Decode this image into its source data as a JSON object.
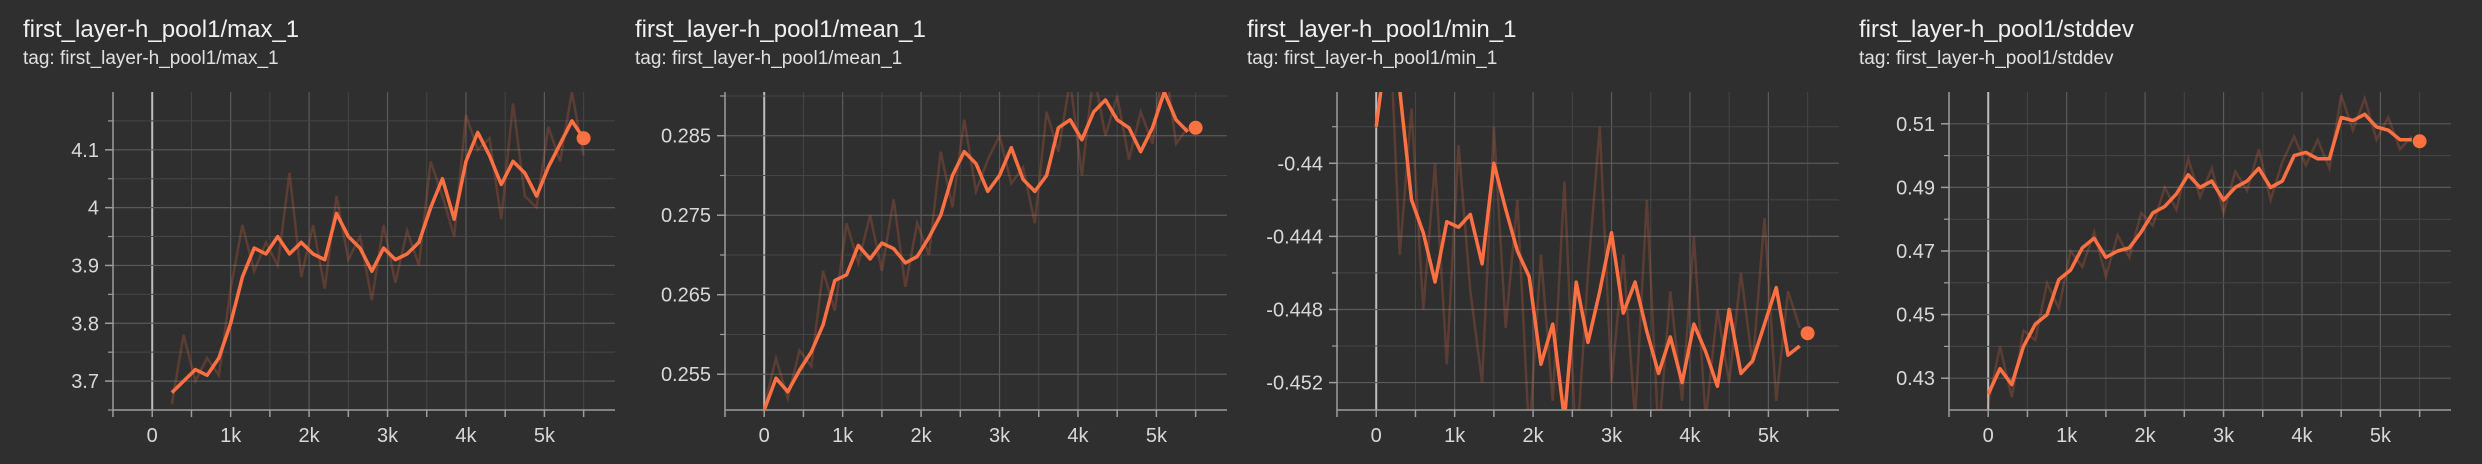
{
  "chart_data": [
    {
      "type": "line",
      "title": "first_layer-h_pool1/max_1",
      "tag": "tag: first_layer-h_pool1/max_1",
      "xlim": [
        -500,
        5900
      ],
      "ylim": [
        3.65,
        4.2
      ],
      "x_ticks": [
        0,
        1000,
        2000,
        3000,
        4000,
        5000
      ],
      "x_tick_labels": [
        "0",
        "1k",
        "2k",
        "3k",
        "4k",
        "5k"
      ],
      "y_ticks": [
        3.7,
        3.8,
        3.9,
        4.0,
        4.1
      ],
      "y_tick_labels": [
        "3.7",
        "3.8",
        "3.9",
        "4",
        "4.1"
      ],
      "series": [
        {
          "x": [
            250,
            400,
            550,
            700,
            850,
            1000,
            1150,
            1300,
            1450,
            1600,
            1750,
            1900,
            2050,
            2200,
            2350,
            2500,
            2650,
            2800,
            2950,
            3100,
            3250,
            3400,
            3550,
            3700,
            3850,
            4000,
            4150,
            4300,
            4450,
            4600,
            4750,
            4900,
            5050,
            5200,
            5350,
            5500
          ],
          "y": [
            3.68,
            3.7,
            3.72,
            3.71,
            3.74,
            3.8,
            3.88,
            3.93,
            3.92,
            3.95,
            3.92,
            3.94,
            3.92,
            3.91,
            3.99,
            3.95,
            3.93,
            3.89,
            3.93,
            3.91,
            3.92,
            3.94,
            4.0,
            4.05,
            3.98,
            4.08,
            4.13,
            4.09,
            4.04,
            4.08,
            4.06,
            4.02,
            4.07,
            4.11,
            4.15,
            4.12
          ],
          "raw_y": [
            3.66,
            3.78,
            3.7,
            3.74,
            3.71,
            3.86,
            3.97,
            3.89,
            3.94,
            3.9,
            4.06,
            3.88,
            3.97,
            3.86,
            4.02,
            3.91,
            3.95,
            3.84,
            3.97,
            3.87,
            3.96,
            3.9,
            4.08,
            4.02,
            3.95,
            4.16,
            4.1,
            4.12,
            3.98,
            4.18,
            4.02,
            4.0,
            4.14,
            4.08,
            4.2,
            4.09
          ]
        }
      ],
      "last_point": {
        "x": 5500,
        "y": 4.12
      },
      "color": "#ff7043"
    },
    {
      "type": "line",
      "title": "first_layer-h_pool1/mean_1",
      "tag": "tag: first_layer-h_pool1/mean_1",
      "xlim": [
        -500,
        5900
      ],
      "ylim": [
        0.2505,
        0.2905
      ],
      "x_ticks": [
        0,
        1000,
        2000,
        3000,
        4000,
        5000
      ],
      "x_tick_labels": [
        "0",
        "1k",
        "2k",
        "3k",
        "4k",
        "5k"
      ],
      "y_ticks": [
        0.255,
        0.265,
        0.275,
        0.285
      ],
      "y_tick_labels": [
        "0.255",
        "0.265",
        "0.275",
        "0.285"
      ],
      "series": [
        {
          "x": [
            0,
            150,
            300,
            450,
            600,
            750,
            900,
            1050,
            1200,
            1350,
            1500,
            1650,
            1800,
            1950,
            2100,
            2250,
            2400,
            2550,
            2700,
            2850,
            3000,
            3150,
            3300,
            3450,
            3600,
            3750,
            3900,
            4050,
            4200,
            4350,
            4500,
            4650,
            4800,
            4950,
            5100,
            5250,
            5400
          ],
          "y": [
            0.2505,
            0.2545,
            0.2528,
            0.2555,
            0.2578,
            0.2612,
            0.2668,
            0.2675,
            0.2712,
            0.2695,
            0.2715,
            0.2708,
            0.269,
            0.2698,
            0.2722,
            0.275,
            0.28,
            0.283,
            0.2815,
            0.278,
            0.28,
            0.2835,
            0.2795,
            0.278,
            0.28,
            0.286,
            0.287,
            0.2845,
            0.288,
            0.2895,
            0.287,
            0.286,
            0.283,
            0.286,
            0.2905,
            0.287,
            0.2855
          ],
          "raw_y": [
            0.251,
            0.257,
            0.252,
            0.258,
            0.256,
            0.268,
            0.263,
            0.274,
            0.269,
            0.275,
            0.268,
            0.277,
            0.266,
            0.274,
            0.27,
            0.283,
            0.276,
            0.287,
            0.278,
            0.282,
            0.285,
            0.279,
            0.281,
            0.274,
            0.288,
            0.283,
            0.292,
            0.28,
            0.293,
            0.285,
            0.29,
            0.282,
            0.288,
            0.284,
            0.295,
            0.284,
            0.286
          ]
        }
      ],
      "last_point": {
        "x": 5500,
        "y": 0.286
      },
      "color": "#ff7043"
    },
    {
      "type": "line",
      "title": "first_layer-h_pool1/min_1",
      "tag": "tag: first_layer-h_pool1/min_1",
      "xlim": [
        -500,
        5900
      ],
      "ylim": [
        -0.4535,
        -0.4361
      ],
      "x_ticks": [
        0,
        1000,
        2000,
        3000,
        4000,
        5000
      ],
      "x_tick_labels": [
        "0",
        "1k",
        "2k",
        "3k",
        "4k",
        "5k"
      ],
      "y_ticks": [
        -0.452,
        -0.448,
        -0.444,
        -0.44
      ],
      "y_tick_labels": [
        "-0.452",
        "-0.448",
        "-0.444",
        "-0.44"
      ],
      "series": [
        {
          "x": [
            0,
            150,
            300,
            450,
            600,
            750,
            900,
            1050,
            1200,
            1350,
            1500,
            1650,
            1800,
            1950,
            2100,
            2250,
            2400,
            2550,
            2700,
            2850,
            3000,
            3150,
            3300,
            3450,
            3600,
            3750,
            3900,
            4050,
            4200,
            4350,
            4500,
            4650,
            4800,
            4950,
            5100,
            5250,
            5400
          ],
          "y": [
            -0.438,
            -0.433,
            -0.436,
            -0.442,
            -0.4438,
            -0.4465,
            -0.4432,
            -0.4435,
            -0.4428,
            -0.4455,
            -0.44,
            -0.4425,
            -0.4448,
            -0.4462,
            -0.451,
            -0.4488,
            -0.454,
            -0.4465,
            -0.4498,
            -0.447,
            -0.4438,
            -0.4482,
            -0.4465,
            -0.4492,
            -0.4515,
            -0.4495,
            -0.452,
            -0.4488,
            -0.4503,
            -0.4522,
            -0.448,
            -0.4515,
            -0.4508,
            -0.4488,
            -0.4468,
            -0.4505,
            -0.45
          ],
          "raw_y": [
            -0.435,
            -0.43,
            -0.445,
            -0.437,
            -0.448,
            -0.44,
            -0.451,
            -0.439,
            -0.447,
            -0.452,
            -0.438,
            -0.449,
            -0.442,
            -0.455,
            -0.445,
            -0.453,
            -0.441,
            -0.456,
            -0.446,
            -0.438,
            -0.452,
            -0.445,
            -0.454,
            -0.442,
            -0.455,
            -0.447,
            -0.453,
            -0.444,
            -0.454,
            -0.448,
            -0.452,
            -0.446,
            -0.451,
            -0.443,
            -0.453,
            -0.447,
            -0.449
          ]
        }
      ],
      "last_point": {
        "x": 5500,
        "y": -0.4493
      },
      "color": "#ff7043"
    },
    {
      "type": "line",
      "title": "first_layer-h_pool1/stddev",
      "tag": "tag: first_layer-h_pool1/stddev",
      "xlim": [
        -500,
        5900
      ],
      "ylim": [
        0.42,
        0.52
      ],
      "x_ticks": [
        0,
        1000,
        2000,
        3000,
        4000,
        5000
      ],
      "x_tick_labels": [
        "0",
        "1k",
        "2k",
        "3k",
        "4k",
        "5k"
      ],
      "y_ticks": [
        0.43,
        0.45,
        0.47,
        0.49,
        0.51
      ],
      "y_tick_labels": [
        "0.43",
        "0.45",
        "0.47",
        "0.49",
        "0.51"
      ],
      "series": [
        {
          "x": [
            0,
            150,
            300,
            450,
            600,
            750,
            900,
            1050,
            1200,
            1350,
            1500,
            1650,
            1800,
            1950,
            2100,
            2250,
            2400,
            2550,
            2700,
            2850,
            3000,
            3150,
            3300,
            3450,
            3600,
            3750,
            3900,
            4050,
            4200,
            4350,
            4500,
            4650,
            4800,
            4950,
            5100,
            5250,
            5400
          ],
          "y": [
            0.425,
            0.433,
            0.428,
            0.44,
            0.447,
            0.45,
            0.461,
            0.464,
            0.471,
            0.474,
            0.468,
            0.47,
            0.471,
            0.476,
            0.482,
            0.484,
            0.488,
            0.494,
            0.49,
            0.492,
            0.486,
            0.49,
            0.492,
            0.496,
            0.49,
            0.492,
            0.5,
            0.501,
            0.499,
            0.499,
            0.512,
            0.511,
            0.513,
            0.509,
            0.508,
            0.505,
            0.505
          ],
          "raw_y": [
            0.422,
            0.44,
            0.424,
            0.445,
            0.442,
            0.46,
            0.452,
            0.47,
            0.465,
            0.476,
            0.462,
            0.475,
            0.468,
            0.482,
            0.478,
            0.49,
            0.483,
            0.499,
            0.487,
            0.496,
            0.482,
            0.495,
            0.489,
            0.502,
            0.486,
            0.498,
            0.506,
            0.497,
            0.505,
            0.496,
            0.519,
            0.508,
            0.518,
            0.505,
            0.512,
            0.502,
            0.506
          ]
        }
      ],
      "last_point": {
        "x": 5500,
        "y": 0.5045
      },
      "color": "#ff7043"
    }
  ]
}
